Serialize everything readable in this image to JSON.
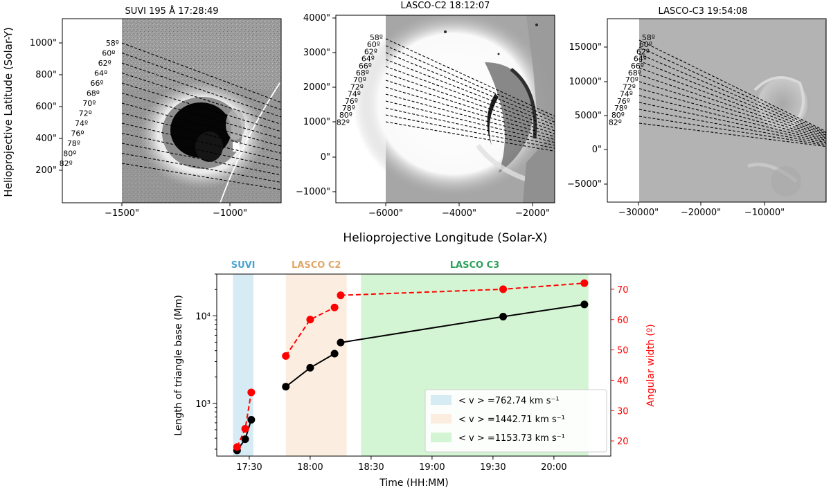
{
  "figure": {
    "top_xlabel": "Helioprojective Longitude (Solar-X)",
    "top_ylabel": "Helioprojective Latitude (Solar-Y)"
  },
  "panels": [
    {
      "title": "SUVI 195 Å 17:28:49",
      "x_ticks": [
        "−1500\"",
        "−1000\""
      ],
      "y_ticks": [
        "1000\"",
        "800\"",
        "600\"",
        "400\"",
        "200\""
      ],
      "angle_labels": [
        "58º",
        "60º",
        "62º",
        "64º",
        "66º",
        "68º",
        "70º",
        "72º",
        "74º",
        "76º",
        "78º",
        "80º",
        "82º"
      ]
    },
    {
      "title": "LASCO-C2 18:12:07",
      "x_ticks": [
        "−6000\"",
        "−4000\"",
        "−2000\""
      ],
      "y_ticks": [
        "4000\"",
        "3000\"",
        "2000\"",
        "1000\"",
        "0\"",
        "−1000\""
      ],
      "angle_labels": [
        "58º",
        "60º",
        "62º",
        "64º",
        "66º",
        "68º",
        "70º",
        "72º",
        "74º",
        "76º",
        "78º",
        "80º",
        "82º"
      ]
    },
    {
      "title": "LASCO-C3  19:54:08",
      "x_ticks": [
        "−30000\"",
        "−20000\"",
        "−10000\""
      ],
      "y_ticks": [
        "15000\"",
        "10000\"",
        "5000\"",
        "0\"",
        "−5000\""
      ],
      "angle_labels": [
        "58º",
        "60º",
        "62º",
        "64º",
        "66º",
        "68º",
        "70º",
        "72º",
        "74º",
        "76º",
        "78º",
        "80º",
        "82º"
      ]
    }
  ],
  "chart_data": {
    "type": "line",
    "xlabel": "Time (HH:MM)",
    "ylabel": "Length of triangle base (Mm)",
    "y2label": "Angular width (º)",
    "x_tick_labels": [
      "17:30",
      "18:00",
      "18:30",
      "19:00",
      "19:30",
      "20:00"
    ],
    "x_tick_minutes": [
      1050,
      1080,
      1110,
      1140,
      1170,
      1200
    ],
    "xlim_minutes": [
      1034,
      1228
    ],
    "y_log_range": [
      250,
      30000
    ],
    "y_tick_labels": [
      "10³",
      "10⁴"
    ],
    "y2lim": [
      15,
      75
    ],
    "y2_ticks": [
      "20",
      "30",
      "40",
      "50",
      "60",
      "70"
    ],
    "y2_tick_values": [
      20,
      30,
      40,
      50,
      60,
      70
    ],
    "bands": [
      {
        "label": "SUVI",
        "start_min": 1042,
        "end_min": 1052,
        "color": "#d6ebf3",
        "label_color": "#4aa3cf",
        "legend": "< v > =762.74 km s⁻¹"
      },
      {
        "label": "LASCO C2",
        "start_min": 1068,
        "end_min": 1098,
        "color": "#fbeee0",
        "label_color": "#e0a66a",
        "legend": "< v > =1442.71 km s⁻¹"
      },
      {
        "label": "LASCO C3",
        "start_min": 1105,
        "end_min": 1217,
        "color": "#d4f5d4",
        "label_color": "#2ca05a",
        "legend": "< v > =1153.73 km s⁻¹"
      }
    ],
    "series": [
      {
        "name": "Length of triangle base",
        "color": "#000000",
        "dash": false,
        "axis": "left",
        "segments": [
          [
            {
              "t": 1044,
              "v": 290
            },
            {
              "t": 1048,
              "v": 390
            },
            {
              "t": 1051,
              "v": 650
            }
          ],
          [
            {
              "t": 1068,
              "v": 1550
            },
            {
              "t": 1080,
              "v": 2550
            },
            {
              "t": 1092,
              "v": 3700
            }
          ],
          [
            {
              "t": 1095,
              "v": 4950
            },
            {
              "t": 1175,
              "v": 9800
            },
            {
              "t": 1215,
              "v": 13500
            }
          ]
        ]
      },
      {
        "name": "Angular width",
        "color": "#ff0000",
        "dash": true,
        "axis": "right",
        "segments": [
          [
            {
              "t": 1044,
              "v": 18
            },
            {
              "t": 1048,
              "v": 24
            },
            {
              "t": 1051,
              "v": 36
            }
          ],
          [
            {
              "t": 1068,
              "v": 48
            },
            {
              "t": 1080,
              "v": 60
            },
            {
              "t": 1092,
              "v": 64
            }
          ],
          [
            {
              "t": 1095,
              "v": 68
            },
            {
              "t": 1175,
              "v": 70
            },
            {
              "t": 1215,
              "v": 72
            }
          ]
        ]
      }
    ]
  }
}
